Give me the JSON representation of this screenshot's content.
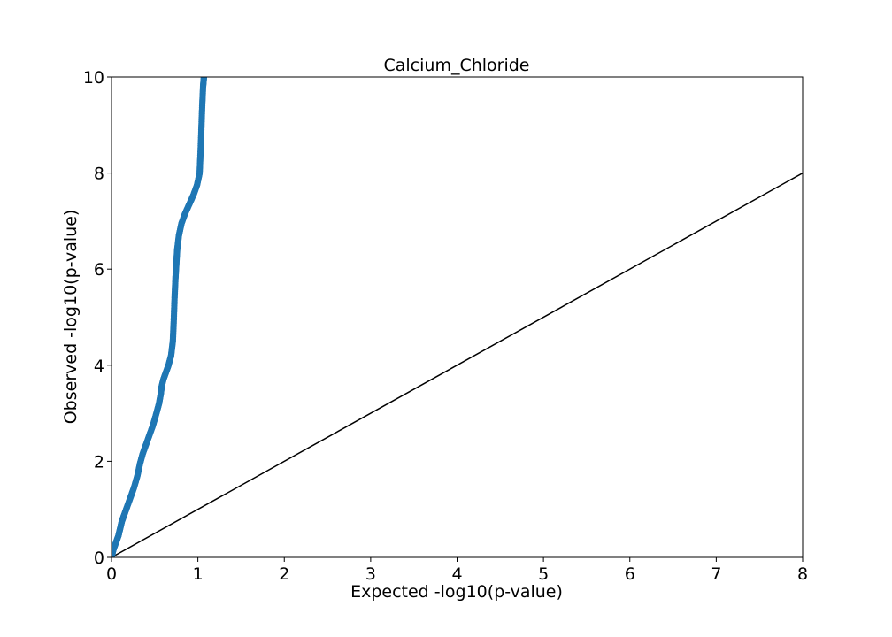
{
  "chart_data": {
    "type": "scatter",
    "title": "Calcium_Chloride",
    "xlabel": "Expected -log10(p-value)",
    "ylabel": "Observed -log10(p-value)",
    "xlim": [
      0,
      8
    ],
    "ylim": [
      0,
      10
    ],
    "xticks": [
      "0",
      "1",
      "2",
      "3",
      "4",
      "5",
      "6",
      "7",
      "8"
    ],
    "yticks": [
      "0",
      "2",
      "4",
      "6",
      "8",
      "10"
    ],
    "grid": false,
    "legend": "none",
    "point_color": "#1f77b4",
    "reference_line": {
      "x": [
        0,
        8
      ],
      "y": [
        0,
        8
      ],
      "color": "#000000"
    },
    "series": [
      {
        "x": [
          0.0,
          0.02,
          0.05,
          0.08,
          0.1,
          0.12,
          0.15,
          0.18,
          0.22,
          0.26,
          0.3,
          0.33,
          0.36,
          0.4,
          0.44,
          0.48,
          0.52,
          0.55,
          0.57,
          0.58,
          0.6,
          0.63,
          0.66,
          0.69,
          0.71,
          0.72,
          0.73,
          0.74,
          0.75,
          0.76,
          0.78,
          0.81,
          0.85,
          0.9,
          0.95,
          0.99,
          1.02,
          1.03,
          1.04,
          1.05,
          1.06,
          1.07
        ],
        "y": [
          0.0,
          0.15,
          0.3,
          0.45,
          0.6,
          0.75,
          0.9,
          1.05,
          1.25,
          1.45,
          1.7,
          1.95,
          2.15,
          2.35,
          2.55,
          2.75,
          3.0,
          3.2,
          3.4,
          3.55,
          3.7,
          3.85,
          4.0,
          4.2,
          4.5,
          4.9,
          5.4,
          5.8,
          6.1,
          6.4,
          6.7,
          6.95,
          7.15,
          7.35,
          7.55,
          7.75,
          8.0,
          8.4,
          8.9,
          9.4,
          9.8,
          10.0
        ]
      }
    ]
  }
}
